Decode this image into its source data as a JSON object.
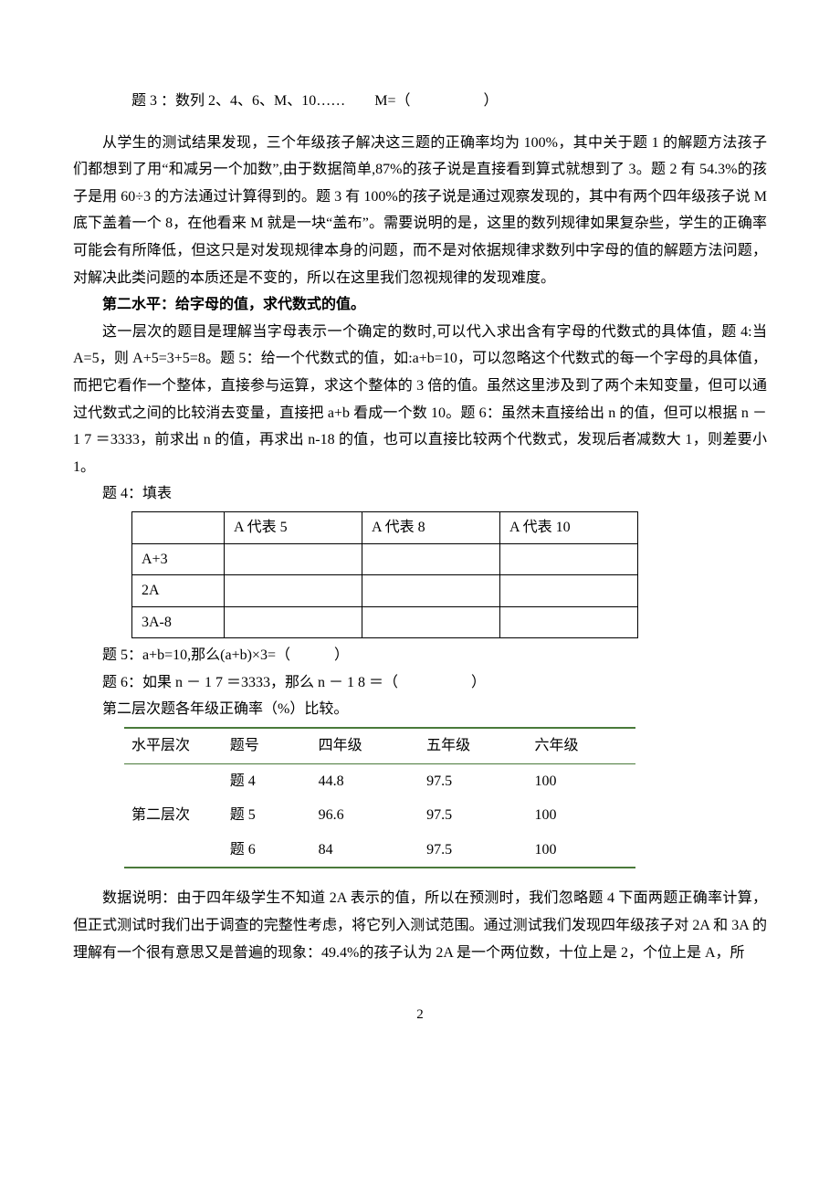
{
  "line_q3": "题 3 ：数列 2、4、6、M、10……  M=（     ）",
  "para1": "从学生的测试结果发现，三个年级孩子解决这三题的正确率均为 100%，其中关于题 1 的解题方法孩子们都想到了用“和减另一个加数”,由于数据简单,87%的孩子说是直接看到算式就想到了 3。题 2 有 54.3%的孩子是用 60÷3 的方法通过计算得到的。题 3 有 100%的孩子说是通过观察发现的，其中有两个四年级孩子说 M 底下盖着一个 8，在他看来 M 就是一块“盖布”。需要说明的是，这里的数列规律如果复杂些，学生的正确率可能会有所降低，但这只是对发现规律本身的问题，而不是对依据规律求数列中字母的值的解题方法问题，对解决此类问题的本质还是不变的，所以在这里我们忽视规律的发现难度。",
  "para2_bold": "第二水平：给字母的值，求代数式的值。",
  "para3": "这一层次的题目是理解当字母表示一个确定的数时,可以代入求出含有字母的代数式的具体值，题 4:当 A=5，则 A+5=3+5=8。题 5：给一个代数式的值，如:a+b=10，可以忽略这个代数式的每一个字母的具体值，而把它看作一个整体，直接参与运算，求这个整体的 3 倍的值。虽然这里涉及到了两个未知变量，但可以通过代数式之间的比较消去变量，直接把 a+b 看成一个数 10。题 6：虽然未直接给出 n 的值，但可以根据 n － 1 7 ＝3333，前求出 n 的值，再求出 n-18 的值，也可以直接比较两个代数式，发现后者减数大 1，则差要小 1。",
  "q4_label": "题 4：填表",
  "table1": {
    "header": [
      "",
      "A 代表 5",
      "A 代表 8",
      "A 代表 10"
    ],
    "rows": [
      [
        "A+3",
        "",
        "",
        ""
      ],
      [
        "2A",
        "",
        "",
        ""
      ],
      [
        "3A-8",
        "",
        "",
        ""
      ]
    ]
  },
  "q5_line": "题 5：a+b=10,那么(a+b)×3=（   ）",
  "q6_line": "题 6：如果 n － 1 7 ＝3333，那么 n － 1 8 ＝（     ）",
  "table2_caption": "第二层次题各年级正确率（%）比较。",
  "table2": {
    "columns": [
      "水平层次",
      "题号",
      "四年级",
      "五年级",
      "六年级"
    ],
    "level_label": "第二层次",
    "rows": [
      [
        "题 4",
        "44.8",
        "97.5",
        "100"
      ],
      [
        "题 5",
        "96.6",
        "97.5",
        "100"
      ],
      [
        "题 6",
        "84",
        "97.5",
        "100"
      ]
    ],
    "border_color": "#4a7a3a"
  },
  "para4": "数据说明：由于四年级学生不知道 2A 表示的值，所以在预测时，我们忽略题 4 下面两题正确率计算，但正式测试时我们出于调查的完整性考虑，将它列入测试范围。通过测试我们发现四年级孩子对 2A 和 3A 的理解有一个很有意思又是普遍的现象：49.4%的孩子认为 2A 是一个两位数，十位上是 2，个位上是 A，所",
  "page_number": "2"
}
